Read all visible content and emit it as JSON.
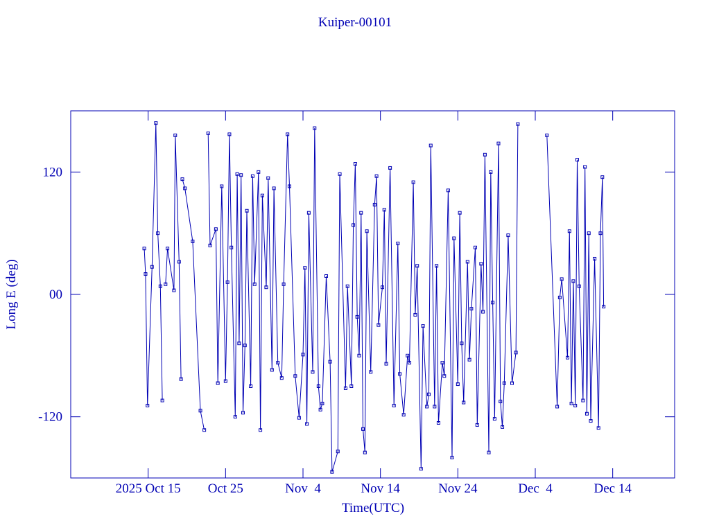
{
  "chart_data": {
    "type": "line",
    "title": "Kuiper-00101",
    "x_label": "Time(UTC)",
    "y_label": "Long E (deg)",
    "color": "#0000b4",
    "xlim": [
      "2025-10-05",
      "2025-12-22"
    ],
    "xticks": [
      {
        "value": "2025-10-15",
        "label": "2025 Oct 15"
      },
      {
        "value": "2025-10-25",
        "label": "Oct 25"
      },
      {
        "value": "2025-11-04",
        "label": "Nov  4"
      },
      {
        "value": "2025-11-14",
        "label": "Nov 14"
      },
      {
        "value": "2025-11-24",
        "label": "Nov 24"
      },
      {
        "value": "2025-12-04",
        "label": "Dec  4"
      },
      {
        "value": "2025-12-14",
        "label": "Dec 14"
      }
    ],
    "ylim": [
      -180,
      180
    ],
    "yticks": [
      -120,
      {
        "value": 0,
        "label": "00"
      },
      120
    ],
    "x": [
      "2025-10-14T12:00",
      "2025-10-14T16:00",
      "2025-10-14T22:00",
      "2025-10-15T12:00",
      "2025-10-16T00:00",
      "2025-10-16T06:00",
      "2025-10-16T14:00",
      "2025-10-16T20:00",
      null,
      "2025-10-17T06:00",
      "2025-10-17T12:00",
      "2025-10-18T08:00",
      "2025-10-18T12:00",
      "2025-10-19T00:00",
      "2025-10-19T06:00",
      null,
      "2025-10-19T10:00",
      "2025-10-19T18:00",
      "2025-10-20T18:00",
      "2025-10-21T18:00",
      "2025-10-22T06:00",
      null,
      "2025-10-22T18:00",
      "2025-10-23T00:00",
      "2025-10-23T18:00",
      "2025-10-24T00:00",
      "2025-10-24T12:00",
      "2025-10-25T00:00",
      "2025-10-25T06:00",
      "2025-10-25T12:00",
      "2025-10-25T18:00",
      "2025-10-26T06:00",
      "2025-10-26T12:00",
      "2025-10-26T18:00",
      "2025-10-27T00:00",
      "2025-10-27T06:00",
      "2025-10-27T12:00",
      "2025-10-27T18:00",
      "2025-10-28T06:00",
      "2025-10-28T12:00",
      "2025-10-28T18:00",
      "2025-10-29T06:00",
      "2025-10-29T12:00",
      "2025-10-29T18:00",
      "2025-10-30T06:00",
      "2025-10-30T12:00",
      "2025-10-31T00:00",
      "2025-10-31T06:00",
      "2025-10-31T18:00",
      "2025-11-01T06:00",
      "2025-11-01T12:00",
      "2025-11-02T00:00",
      "2025-11-02T06:00",
      "2025-11-03T00:00",
      "2025-11-03T12:00",
      "2025-11-04T00:00",
      "2025-11-04T06:00",
      "2025-11-04T12:00",
      "2025-11-04T18:00",
      "2025-11-05T06:00",
      "2025-11-05T12:00",
      "2025-11-06T00:00",
      "2025-11-06T06:00",
      "2025-11-06T12:00",
      "2025-11-07T00:00",
      "2025-11-07T12:00",
      "2025-11-07T18:00",
      "2025-11-08T12:00",
      "2025-11-08T18:00",
      "2025-11-09T12:00",
      "2025-11-09T18:00",
      "2025-11-10T06:00",
      "2025-11-10T12:00",
      "2025-11-10T18:00",
      "2025-11-11T00:00",
      "2025-11-11T06:00",
      "2025-11-11T12:00",
      "2025-11-11T18:00",
      "2025-11-12T00:00",
      "2025-11-12T06:00",
      "2025-11-12T18:00",
      "2025-11-13T06:00",
      "2025-11-13T12:00",
      "2025-11-13T18:00",
      "2025-11-14T06:00",
      "2025-11-14T12:00",
      "2025-11-14T18:00",
      "2025-11-15T06:00",
      "2025-11-15T18:00",
      "2025-11-16T06:00",
      "2025-11-16T12:00",
      "2025-11-17T00:00",
      "2025-11-17T12:00",
      "2025-11-17T18:00",
      "2025-11-18T06:00",
      "2025-11-18T12:00",
      "2025-11-18T18:00",
      "2025-11-19T06:00",
      "2025-11-19T12:00",
      "2025-11-20T00:00",
      "2025-11-20T06:00",
      "2025-11-20T12:00",
      "2025-11-21T00:00",
      "2025-11-21T06:00",
      "2025-11-21T12:00",
      "2025-11-22T00:00",
      "2025-11-22T06:00",
      "2025-11-22T18:00",
      "2025-11-23T06:00",
      "2025-11-23T12:00",
      "2025-11-24T00:00",
      "2025-11-24T06:00",
      "2025-11-24T12:00",
      "2025-11-24T18:00",
      "2025-11-25T06:00",
      "2025-11-25T12:00",
      "2025-11-25T18:00",
      "2025-11-26T06:00",
      "2025-11-26T12:00",
      "2025-11-27T00:00",
      "2025-11-27T06:00",
      "2025-11-27T12:00",
      "2025-11-28T00:00",
      "2025-11-28T06:00",
      "2025-11-28T12:00",
      "2025-11-28T18:00",
      "2025-11-29T06:00",
      "2025-11-29T12:00",
      "2025-11-29T18:00",
      "2025-11-30T00:00",
      "2025-11-30T12:00",
      "2025-12-01T00:00",
      "2025-12-01T12:00",
      "2025-12-01T18:00",
      null,
      "2025-12-05T12:00",
      "2025-12-06T20:00",
      "2025-12-07T04:00",
      "2025-12-07T10:00",
      "2025-12-08T04:00",
      "2025-12-08T10:00",
      "2025-12-08T16:00",
      "2025-12-08T22:00",
      "2025-12-09T04:00",
      "2025-12-09T10:00",
      "2025-12-09T16:00",
      "2025-12-10T04:00",
      "2025-12-10T10:00",
      "2025-12-10T16:00",
      "2025-12-10T22:00",
      "2025-12-11T04:00",
      "2025-12-11T16:00",
      "2025-12-12T04:00",
      "2025-12-12T10:00",
      "2025-12-12T16:00",
      "2025-12-12T20:00"
    ],
    "values": [
      45,
      20,
      -109,
      27,
      168,
      60,
      8,
      -104,
      null,
      10,
      45,
      4,
      156,
      32,
      -83,
      null,
      113,
      104,
      52,
      -114,
      -133,
      null,
      158,
      48,
      64,
      -87,
      106,
      -85,
      12,
      157,
      46,
      -120,
      118,
      -48,
      117,
      -116,
      -50,
      82,
      -90,
      116,
      10,
      120,
      -133,
      97,
      7,
      114,
      -74,
      104,
      -67,
      -82,
      10,
      157,
      106,
      -80,
      -121,
      -59,
      26,
      -127,
      80,
      -76,
      163,
      -90,
      -113,
      -107,
      18,
      -66,
      -174,
      -154,
      118,
      -92,
      8,
      -90,
      68,
      128,
      -22,
      -60,
      80,
      -132,
      -155,
      62,
      -76,
      88,
      116,
      -30,
      7,
      83,
      -68,
      124,
      -109,
      50,
      -78,
      -118,
      -60,
      -67,
      110,
      -20,
      28,
      -171,
      -31,
      -110,
      -98,
      146,
      -110,
      28,
      -126,
      -67,
      -80,
      102,
      -160,
      55,
      -88,
      80,
      -48,
      -106,
      32,
      -64,
      -14,
      46,
      -128,
      30,
      -17,
      137,
      -155,
      120,
      -8,
      -122,
      148,
      -105,
      -130,
      -87,
      58,
      -87,
      -57,
      167,
      null,
      156,
      -110,
      -3,
      15,
      -62,
      62,
      -107,
      13,
      -109,
      132,
      8,
      -104,
      125,
      -117,
      60,
      -124,
      35,
      -131,
      60,
      115,
      -12
    ]
  }
}
